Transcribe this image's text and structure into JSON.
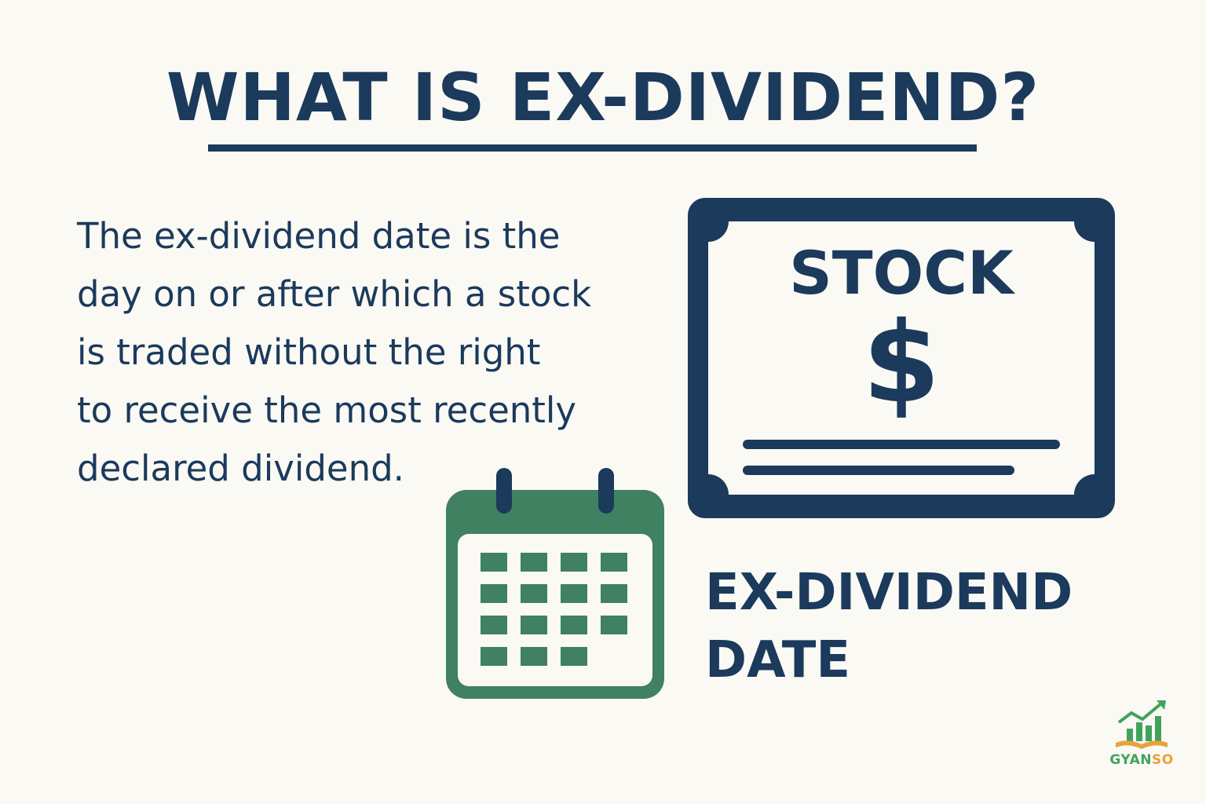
{
  "header": {
    "title": "WHAT IS EX-DIVIDEND?"
  },
  "definition": {
    "lines": [
      "The ex-dividend date is the",
      "day on or after which a stock",
      "is traded without the right",
      "to receive the most recently",
      "declared dividend."
    ]
  },
  "certificate": {
    "title": "STOCK",
    "symbol": "$"
  },
  "date_label": {
    "line1": "EX-DIVIDEND",
    "line2": "DATE"
  },
  "logo": {
    "text_green": "GYAN",
    "text_orange": "SO"
  },
  "icons": {
    "certificate": "stock-certificate-icon",
    "calendar": "calendar-icon",
    "logo": "growth-chart-book-icon"
  },
  "colors": {
    "background": "#faf9f4",
    "navy": "#1b3a5c",
    "calendar_green": "#3f8160",
    "logo_green": "#41a35b",
    "logo_orange": "#e8a23a"
  }
}
